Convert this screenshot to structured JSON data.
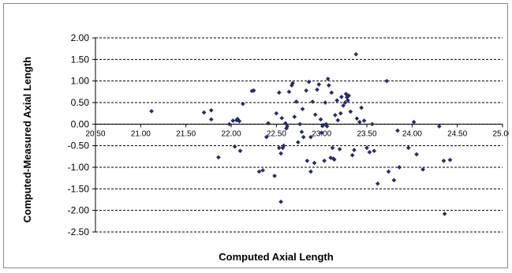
{
  "chart_data": {
    "type": "scatter",
    "title": "",
    "xlabel": "Computed Axial Length",
    "ylabel": "Computed-Measured Axial Length",
    "xlim": [
      20.5,
      25.0
    ],
    "ylim": [
      -2.5,
      2.0
    ],
    "x_ticks": [
      "20.50",
      "21.00",
      "21.50",
      "22.00",
      "22.50",
      "23.00",
      "23.50",
      "24.00",
      "24.50",
      "25.00"
    ],
    "y_ticks": [
      "2.00",
      "1.50",
      "1.00",
      "0.50",
      "0.00",
      "-0.50",
      "-1.00",
      "-1.50",
      "-2.00",
      "-2.50"
    ],
    "grid": "horizontal-dashed",
    "marker_color": "#2b2b6b",
    "series": [
      {
        "points": [
          [
            21.12,
            0.3
          ],
          [
            21.7,
            0.27
          ],
          [
            21.78,
            0.32
          ],
          [
            21.78,
            0.11
          ],
          [
            21.86,
            -0.77
          ],
          [
            21.98,
            0.0
          ],
          [
            22.02,
            0.08
          ],
          [
            22.04,
            -0.52
          ],
          [
            22.06,
            0.09
          ],
          [
            22.07,
            0.12
          ],
          [
            22.09,
            0.07
          ],
          [
            22.1,
            -0.62
          ],
          [
            22.13,
            0.47
          ],
          [
            22.23,
            0.77
          ],
          [
            22.25,
            0.78
          ],
          [
            22.31,
            -1.1
          ],
          [
            22.35,
            -1.07
          ],
          [
            22.39,
            -0.3
          ],
          [
            22.41,
            0.02
          ],
          [
            22.48,
            -1.2
          ],
          [
            22.5,
            0.25
          ],
          [
            22.53,
            0.73
          ],
          [
            22.53,
            -0.55
          ],
          [
            22.55,
            -0.68
          ],
          [
            22.55,
            -1.8
          ],
          [
            22.56,
            0.14
          ],
          [
            22.57,
            -0.55
          ],
          [
            22.58,
            -0.5
          ],
          [
            22.6,
            0.02
          ],
          [
            22.61,
            -0.1
          ],
          [
            22.62,
            -0.05
          ],
          [
            22.64,
            0.75
          ],
          [
            22.67,
            0.9
          ],
          [
            22.68,
            0.95
          ],
          [
            22.7,
            0.17
          ],
          [
            22.72,
            0.52
          ],
          [
            22.74,
            -0.42
          ],
          [
            22.76,
            0.0
          ],
          [
            22.78,
            -0.18
          ],
          [
            22.79,
            0.35
          ],
          [
            22.8,
            -0.3
          ],
          [
            22.83,
            0.78
          ],
          [
            22.84,
            -0.85
          ],
          [
            22.86,
            0.98
          ],
          [
            22.88,
            -0.3
          ],
          [
            22.88,
            -1.1
          ],
          [
            22.9,
            0.52
          ],
          [
            22.92,
            -0.9
          ],
          [
            22.93,
            0.22
          ],
          [
            22.95,
            0.8
          ],
          [
            22.97,
            0.92
          ],
          [
            22.99,
            0.11
          ],
          [
            23.0,
            -0.2
          ],
          [
            23.01,
            -0.04
          ],
          [
            23.02,
            -0.02
          ],
          [
            23.03,
            -0.85
          ],
          [
            23.04,
            0.5
          ],
          [
            23.05,
            0.0
          ],
          [
            23.06,
            -0.05
          ],
          [
            23.07,
            1.05
          ],
          [
            23.08,
            0.9
          ],
          [
            23.1,
            -0.78
          ],
          [
            23.11,
            0.73
          ],
          [
            23.12,
            -0.55
          ],
          [
            23.13,
            -0.8
          ],
          [
            23.14,
            -0.82
          ],
          [
            23.15,
            0.21
          ],
          [
            23.17,
            0.55
          ],
          [
            23.18,
            0.09
          ],
          [
            23.2,
            -0.58
          ],
          [
            23.21,
            0.25
          ],
          [
            23.22,
            0.63
          ],
          [
            23.24,
            0.43
          ],
          [
            23.26,
            0.5
          ],
          [
            23.27,
            0.7
          ],
          [
            23.28,
            0.62
          ],
          [
            23.29,
            0.55
          ],
          [
            23.3,
            0.66
          ],
          [
            23.32,
            0.29
          ],
          [
            23.34,
            -0.72
          ],
          [
            23.36,
            -0.6
          ],
          [
            23.38,
            1.62
          ],
          [
            23.39,
            0.13
          ],
          [
            23.42,
            0.05
          ],
          [
            23.44,
            0.38
          ],
          [
            23.47,
            0.08
          ],
          [
            23.5,
            -0.55
          ],
          [
            23.53,
            -0.65
          ],
          [
            23.56,
            0.0
          ],
          [
            23.58,
            -0.62
          ],
          [
            23.62,
            -1.38
          ],
          [
            23.72,
            1.0
          ],
          [
            23.74,
            -1.1
          ],
          [
            23.8,
            -1.3
          ],
          [
            23.84,
            -0.15
          ],
          [
            23.86,
            -1.0
          ],
          [
            23.96,
            -0.55
          ],
          [
            24.02,
            0.05
          ],
          [
            24.05,
            -0.7
          ],
          [
            24.12,
            -1.05
          ],
          [
            24.3,
            -0.05
          ],
          [
            24.35,
            -0.85
          ],
          [
            24.36,
            -2.08
          ],
          [
            24.42,
            -0.83
          ]
        ]
      }
    ]
  }
}
